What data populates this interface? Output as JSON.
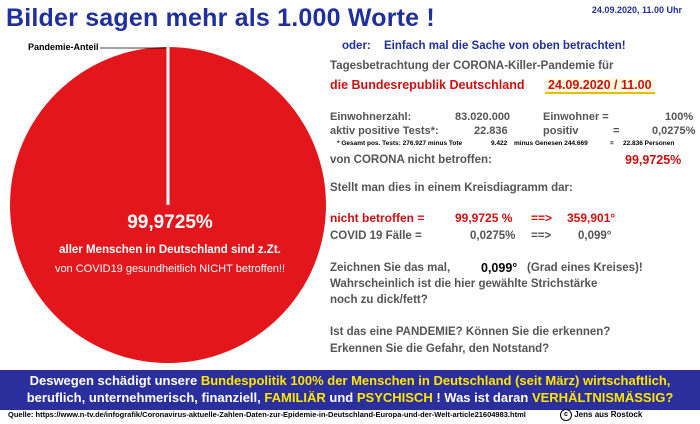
{
  "header": {
    "title": "Bilder sagen mehr als 1.000 Worte !",
    "date": "24.09.2020, 11.00 Uhr"
  },
  "pie": {
    "slice_label": "Pandemie-Anteil",
    "big_value": "99,9725%",
    "line1": "aller Menschen in Deutschland sind z.Zt.",
    "line2": "von COVID19 gesundheitlich NICHT betroffen!!",
    "colors": {
      "main": "#e3171b",
      "slice": "#ffffff"
    }
  },
  "right": {
    "oder_label": "oder:",
    "oder_text": "Einfach mal die Sache von oben betrachten!",
    "tages_line": "Tagesbetrachtung der CORONA-Killer-Pandemie für",
    "brd": "die Bundesrepublik Deutschland",
    "stamp": "24.09.2020 / 11.00",
    "ew_label": "Einwohnerzahl:",
    "ew_value": "83.020.000",
    "ew_label2": "Einwohner =",
    "ew_pct": "100%",
    "tests_label": "aktiv positive Tests*:",
    "tests_value": "22.836",
    "positiv_label": "positiv",
    "positiv_eq": "=",
    "positiv_pct": "0,0275%",
    "footnote_a": "* Gesamt pos. Tests: 276.927 minus Tote",
    "footnote_b": "9.422",
    "footnote_c": "minus Genesen 244.669",
    "footnote_d": "=",
    "footnote_e": "22.836 Personen",
    "nb_label": "von CORONA nicht betroffen:",
    "nb_value": "99,9725%",
    "kreis": "Stellt man dies in einem Kreisdiagramm dar:",
    "nicht_label": "nicht betroffen =",
    "nicht_pct": "99,9725 %",
    "nicht_arrow": "==>",
    "nicht_deg": "359,901°",
    "covid_label": "COVID 19 Fälle =",
    "covid_pct": "0,0275%",
    "covid_arrow": "==>",
    "covid_deg": "0,099°",
    "z1a": "Zeichnen Sie das mal,",
    "z1b": "0,099°",
    "z1c": "(Grad eines Kreises)!",
    "z2": "Wahrscheinlich ist die hier gewählte Strichstärke",
    "z3": "noch zu dick/fett?",
    "q1": "Ist das eine PANDEMIE? Können Sie die erkennen?",
    "q2": "Erkennen Sie die Gefahr, den Notstand?"
  },
  "banner": {
    "l1a": "Deswegen schädigt unsere",
    "l1b": "Bundespolitik 100% der Menschen in Deutschland (seit März) wirtschaftlich,",
    "l2a": "beruflich, unternehmerisch, finanziell,",
    "l2b": "FAMILIÄR",
    "l2c": "und",
    "l2d": "PSYCHISCH",
    "l2e": "! Was ist daran",
    "l2f": "VERHÄLTNISMÄSSIG?"
  },
  "footer": {
    "source": "Quelle: https://www.n-tv.de/infografik/Coronavirus-aktuelle-Zahlen-Daten-zur-Epidemie-in-Deutschland-Europa-und-der-Welt-article21604983.html",
    "copyright_mark": "c",
    "credit": "Jens aus Rostock"
  }
}
